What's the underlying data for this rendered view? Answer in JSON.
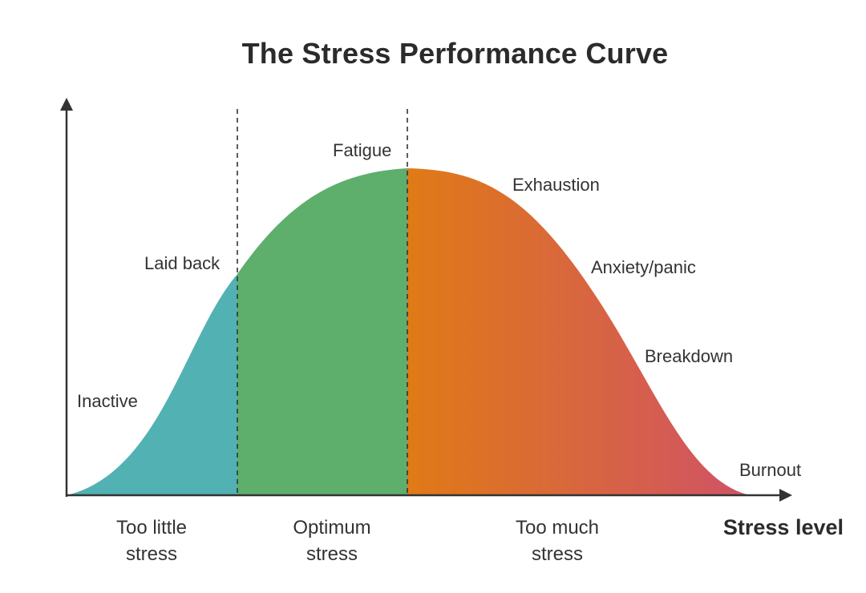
{
  "title": "The Stress Performance Curve",
  "x_axis_label": "Stress level",
  "zones": [
    {
      "line1": "Too little",
      "line2": "stress",
      "color": "#52b1b3"
    },
    {
      "line1": "Optimum",
      "line2": "stress",
      "color": "#5eae6c"
    },
    {
      "line1": "Too much",
      "line2": "stress",
      "color_start": "#e07a16",
      "color_end": "#d05266"
    }
  ],
  "curve_labels": {
    "inactive": "Inactive",
    "laid_back": "Laid back",
    "fatigue": "Fatigue",
    "exhaustion": "Exhaustion",
    "anxiety": "Anxiety/panic",
    "breakdown": "Breakdown",
    "burnout": "Burnout"
  },
  "colors": {
    "axis": "#333333",
    "divider": "#333333"
  }
}
